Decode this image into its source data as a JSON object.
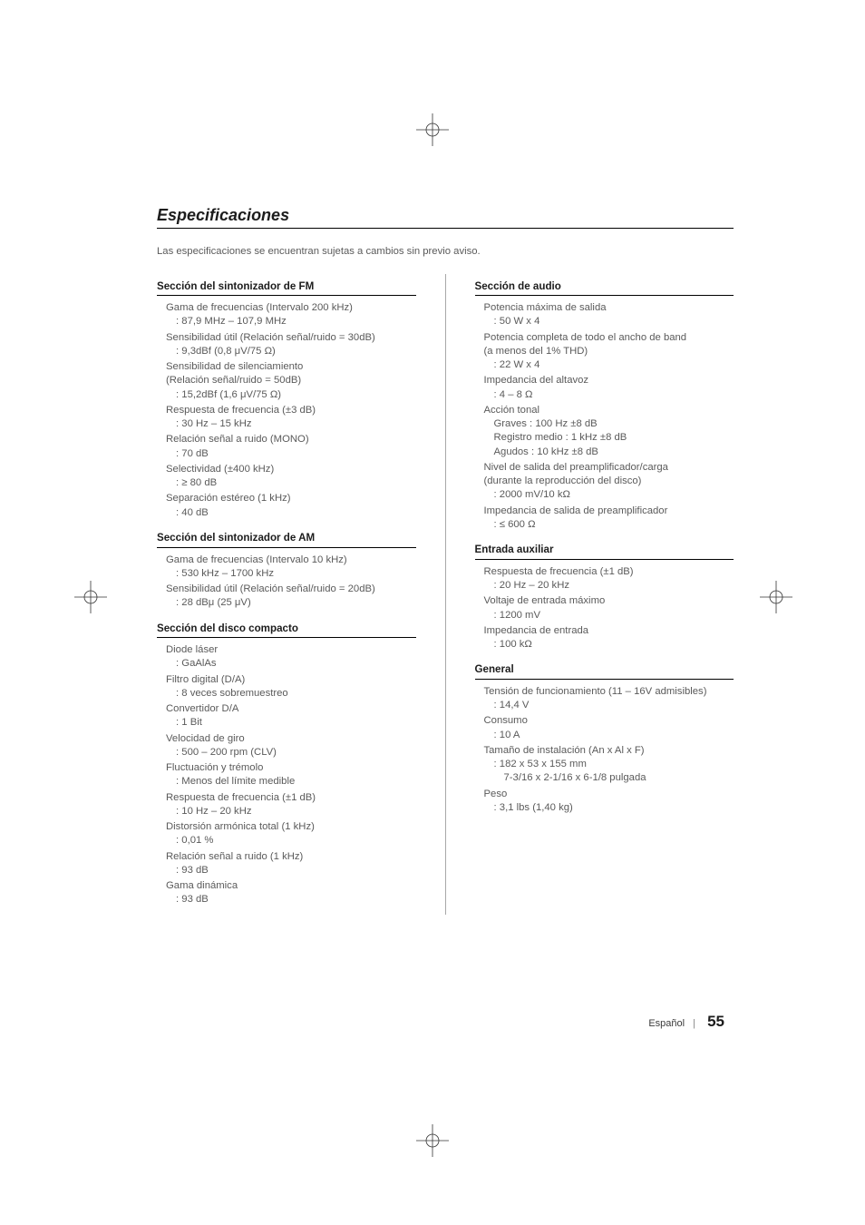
{
  "title": "Especificaciones",
  "intro": "Las especificaciones se encuentran sujetas a cambios sin previo aviso.",
  "footer": {
    "language": "Español",
    "page": "55"
  },
  "left": [
    {
      "heading": "Sección del sintonizador de FM",
      "items": [
        {
          "label": "Gama de frecuencias (Intervalo 200 kHz)",
          "value": "87,9 MHz – 107,9 MHz"
        },
        {
          "label": "Sensibilidad útil (Relación señal/ruido = 30dB)",
          "value": "9,3dBf (0,8 μV/75 Ω)"
        },
        {
          "label": "Sensibilidad de silenciamiento",
          "note": "(Relación señal/ruido = 50dB)",
          "value": "15,2dBf (1,6 μV/75 Ω)"
        },
        {
          "label": "Respuesta de frecuencia (±3 dB)",
          "value": "30 Hz – 15 kHz"
        },
        {
          "label": "Relación señal a ruido (MONO)",
          "value": "70 dB"
        },
        {
          "label": "Selectividad (±400 kHz)",
          "value": "≥ 80 dB"
        },
        {
          "label": "Separación estéreo (1 kHz)",
          "value": "40 dB"
        }
      ]
    },
    {
      "heading": "Sección del sintonizador de AM",
      "items": [
        {
          "label": "Gama de frecuencias (Intervalo 10 kHz)",
          "value": "530 kHz – 1700 kHz"
        },
        {
          "label": "Sensibilidad útil (Relación señal/ruido = 20dB)",
          "value": "28 dBμ (25 μV)"
        }
      ]
    },
    {
      "heading": "Sección del disco compacto",
      "items": [
        {
          "label": "Diode láser",
          "value": "GaAlAs"
        },
        {
          "label": "Filtro digital (D/A)",
          "value": "8 veces sobremuestreo"
        },
        {
          "label": "Convertidor D/A",
          "value": "1 Bit"
        },
        {
          "label": "Velocidad de giro",
          "value": "500 – 200 rpm (CLV)"
        },
        {
          "label": "Fluctuación y trémolo",
          "value": "Menos del límite medible"
        },
        {
          "label": "Respuesta de frecuencia (±1 dB)",
          "value": "10 Hz – 20 kHz"
        },
        {
          "label": "Distorsión armónica total (1 kHz)",
          "value": "0,01 %"
        },
        {
          "label": "Relación señal a ruido (1 kHz)",
          "value": "93 dB"
        },
        {
          "label": "Gama dinámica",
          "value": "93 dB"
        }
      ]
    }
  ],
  "right": [
    {
      "heading": "Sección de audio",
      "items": [
        {
          "label": "Potencia máxima de salida",
          "value": "50 W x 4"
        },
        {
          "label": "Potencia completa de todo el ancho de band",
          "note": "(a menos del 1% THD)",
          "value": "22 W x 4"
        },
        {
          "label": "Impedancia del altavoz",
          "value": "4 – 8 Ω"
        },
        {
          "label": "Acción tonal",
          "subs": [
            "Graves : 100 Hz ±8 dB",
            "Registro medio : 1 kHz ±8 dB",
            "Agudos : 10 kHz ±8 dB"
          ]
        },
        {
          "label": "Nivel de salida del preamplificador/carga",
          "note": "(durante la reproducción del disco)",
          "value": "2000 mV/10 kΩ"
        },
        {
          "label": "Impedancia de salida de preamplificador",
          "value": "≤ 600 Ω"
        }
      ]
    },
    {
      "heading": "Entrada auxiliar",
      "items": [
        {
          "label": "Respuesta de frecuencia (±1 dB)",
          "value": "20 Hz – 20 kHz"
        },
        {
          "label": "Voltaje de entrada máximo",
          "value": "1200 mV"
        },
        {
          "label": "Impedancia de entrada",
          "value": "100 kΩ"
        }
      ]
    },
    {
      "heading": "General",
      "items": [
        {
          "label": "Tensión de funcionamiento (11 – 16V admisibles)",
          "value": "14,4 V"
        },
        {
          "label": "Consumo",
          "value": "10 A"
        },
        {
          "label": "Tamaño de instalación (An x Al x F)",
          "value": "182 x 53 x 155 mm",
          "extra": "7-3/16 x 2-1/16 x 6-1/8 pulgada"
        },
        {
          "label": "Peso",
          "value": "3,1 lbs (1,40 kg)"
        }
      ]
    }
  ]
}
